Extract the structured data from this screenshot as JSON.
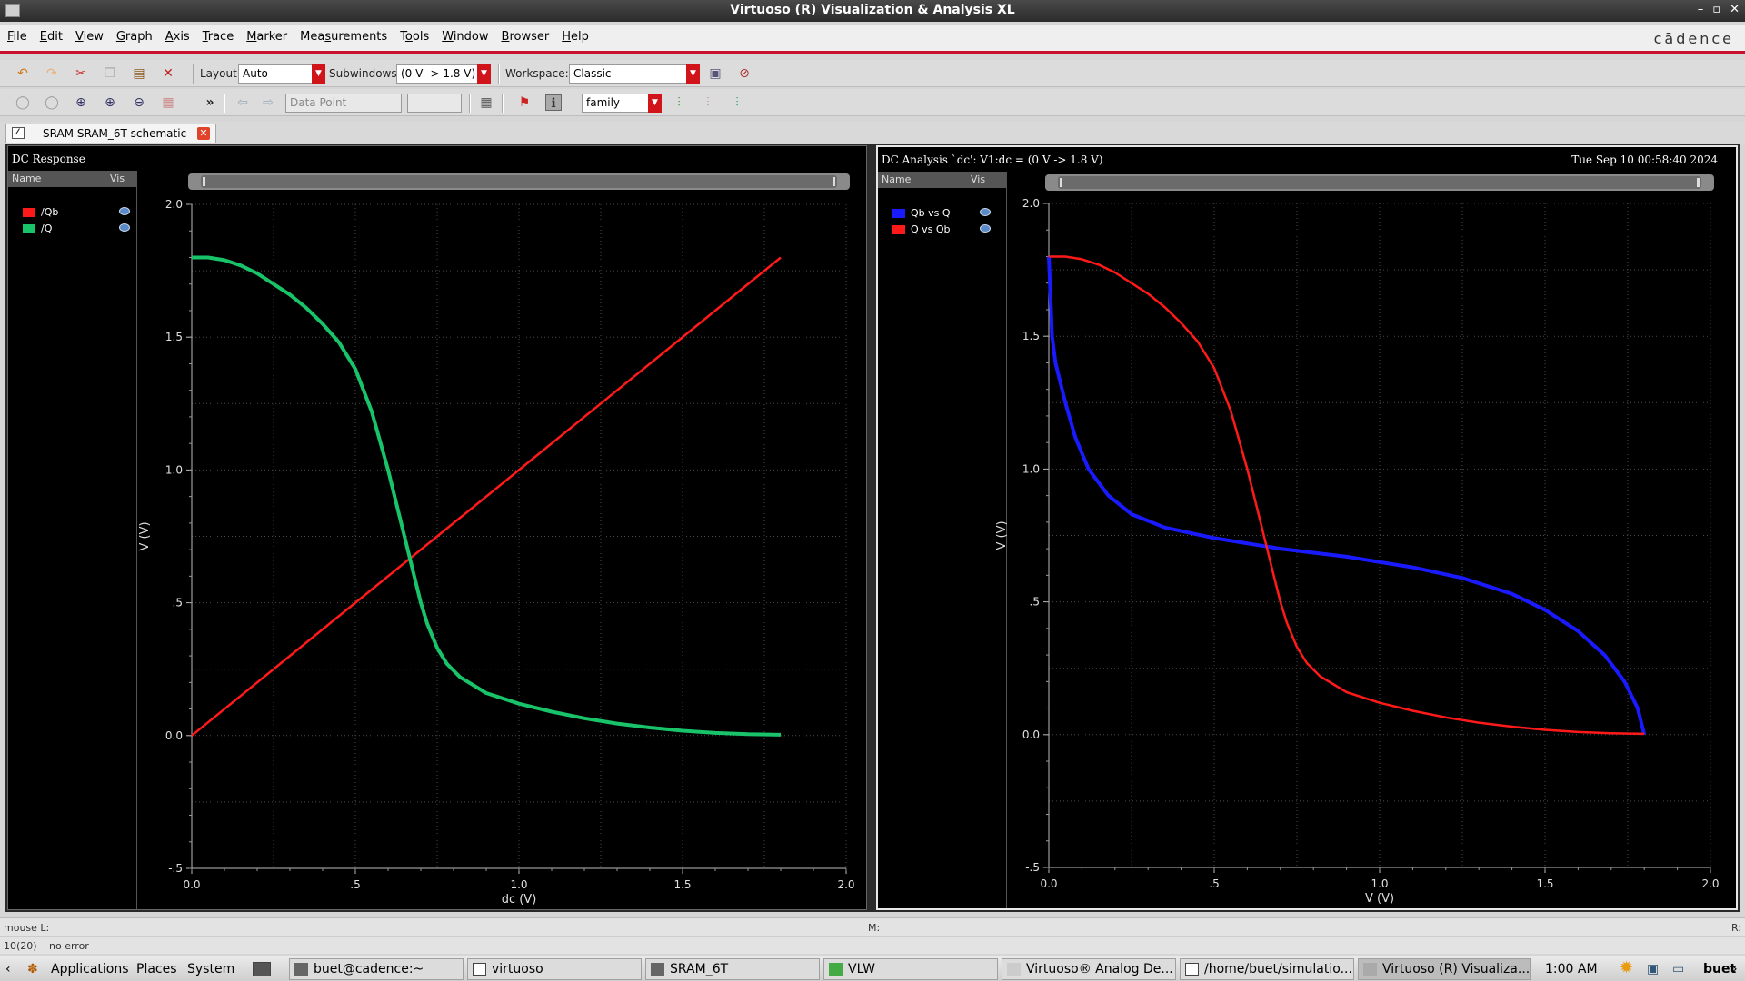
{
  "window": {
    "title": "Virtuoso (R) Visualization & Analysis XL",
    "controls": [
      "–",
      "▫",
      "✕"
    ]
  },
  "menubar": {
    "items": [
      {
        "pre": "",
        "u": "F",
        "post": "ile"
      },
      {
        "pre": "",
        "u": "E",
        "post": "dit"
      },
      {
        "pre": "",
        "u": "V",
        "post": "iew"
      },
      {
        "pre": "",
        "u": "G",
        "post": "raph"
      },
      {
        "pre": "",
        "u": "A",
        "post": "xis"
      },
      {
        "pre": "",
        "u": "T",
        "post": "race"
      },
      {
        "pre": "",
        "u": "M",
        "post": "arker"
      },
      {
        "pre": "Mea",
        "u": "s",
        "post": "urements"
      },
      {
        "pre": "T",
        "u": "o",
        "post": "ols"
      },
      {
        "pre": "",
        "u": "W",
        "post": "indow"
      },
      {
        "pre": "",
        "u": "B",
        "post": "rowser"
      },
      {
        "pre": "",
        "u": "H",
        "post": "elp"
      }
    ],
    "brand": "cādence"
  },
  "toolbar1": {
    "layout_label": "Layout:",
    "layout_value": "Auto",
    "subwindows_label": "Subwindows:",
    "subwindows_value": "(0 V -> 1.8 V)",
    "workspace_label": "Workspace:",
    "workspace_value": "Classic"
  },
  "toolbar2": {
    "more": "»",
    "datapoint_value": "Data Point",
    "family_value": "family"
  },
  "tab": {
    "label": "SRAM SRAM_6T schematic",
    "close": "✕"
  },
  "left": {
    "title": "DC Response",
    "legend_header": {
      "name": "Name",
      "vis": "Vis"
    },
    "legend": [
      {
        "name": "/Qb",
        "color": "#ff1a1a"
      },
      {
        "name": "/Q",
        "color": "#19c36a"
      }
    ],
    "xlabel": "dc (V)",
    "ylabel": "V (V)"
  },
  "right": {
    "title": "DC Analysis `dc': V1:dc = (0 V -> 1.8 V)",
    "date": "Tue Sep 10 00:58:40 2024",
    "legend_header": {
      "name": "Name",
      "vis": "Vis"
    },
    "legend": [
      {
        "name": "Qb vs Q",
        "color": "#1a1aff"
      },
      {
        "name": "Q vs Qb",
        "color": "#ff1a1a"
      }
    ],
    "xlabel": "V (V)",
    "ylabel": "V (V)"
  },
  "chart_data": [
    {
      "type": "line",
      "title": "DC Response",
      "xlabel": "dc (V)",
      "ylabel": "V (V)",
      "xlim": [
        0,
        2.0
      ],
      "ylim": [
        -0.5,
        2.0
      ],
      "xticks": [
        "0.0",
        ".5",
        "1.0",
        "1.5",
        "2.0"
      ],
      "yticks": [
        "-.5",
        "0.0",
        ".5",
        "1.0",
        "1.5",
        "2.0"
      ],
      "grid": true,
      "series": [
        {
          "name": "/Qb",
          "color": "#ff1a1a",
          "x": [
            0,
            1.8
          ],
          "y": [
            0,
            1.8
          ]
        },
        {
          "name": "/Q",
          "color": "#19c36a",
          "x": [
            0,
            0.05,
            0.1,
            0.15,
            0.2,
            0.3,
            0.35,
            0.4,
            0.45,
            0.5,
            0.55,
            0.6,
            0.62,
            0.65,
            0.68,
            0.7,
            0.72,
            0.75,
            0.78,
            0.82,
            0.9,
            1.0,
            1.1,
            1.2,
            1.3,
            1.4,
            1.5,
            1.6,
            1.7,
            1.8
          ],
          "y": [
            1.8,
            1.8,
            1.79,
            1.77,
            1.74,
            1.66,
            1.61,
            1.55,
            1.48,
            1.38,
            1.22,
            1.0,
            0.9,
            0.75,
            0.6,
            0.5,
            0.42,
            0.33,
            0.27,
            0.22,
            0.16,
            0.12,
            0.09,
            0.065,
            0.045,
            0.03,
            0.018,
            0.01,
            0.005,
            0.003
          ]
        }
      ]
    },
    {
      "type": "line",
      "title": "DC Analysis `dc': V1:dc = (0 V -> 1.8 V)",
      "xlabel": "V (V)",
      "ylabel": "V (V)",
      "xlim": [
        0,
        2.0
      ],
      "ylim": [
        -0.5,
        2.0
      ],
      "xticks": [
        "0.0",
        ".5",
        "1.0",
        "1.5",
        "2.0"
      ],
      "yticks": [
        "-.5",
        "0.0",
        ".5",
        "1.0",
        "1.5",
        "2.0"
      ],
      "grid": true,
      "series": [
        {
          "name": "Qb vs Q",
          "color": "#1a1aff",
          "x": [
            0.0,
            0.005,
            0.01,
            0.02,
            0.05,
            0.08,
            0.12,
            0.18,
            0.25,
            0.35,
            0.5,
            0.7,
            0.9,
            1.1,
            1.25,
            1.4,
            1.5,
            1.6,
            1.68,
            1.74,
            1.78,
            1.8
          ],
          "y": [
            1.8,
            1.65,
            1.5,
            1.4,
            1.25,
            1.12,
            1.0,
            0.9,
            0.83,
            0.78,
            0.74,
            0.7,
            0.67,
            0.63,
            0.59,
            0.53,
            0.47,
            0.39,
            0.3,
            0.2,
            0.1,
            0.0
          ]
        },
        {
          "name": "Q vs Qb",
          "color": "#ff1a1a",
          "x": [
            0,
            0.05,
            0.1,
            0.15,
            0.2,
            0.3,
            0.35,
            0.4,
            0.45,
            0.5,
            0.55,
            0.6,
            0.62,
            0.65,
            0.68,
            0.7,
            0.72,
            0.75,
            0.78,
            0.82,
            0.9,
            1.0,
            1.1,
            1.2,
            1.3,
            1.4,
            1.5,
            1.6,
            1.7,
            1.8
          ],
          "y": [
            1.8,
            1.8,
            1.79,
            1.77,
            1.74,
            1.66,
            1.61,
            1.55,
            1.48,
            1.38,
            1.22,
            1.0,
            0.9,
            0.75,
            0.6,
            0.5,
            0.42,
            0.33,
            0.27,
            0.22,
            0.16,
            0.12,
            0.09,
            0.065,
            0.045,
            0.03,
            0.018,
            0.01,
            0.005,
            0.003
          ]
        }
      ]
    }
  ],
  "status": {
    "mouse_l": "mouse L:",
    "m": "M:",
    "r": "R:",
    "count": "10(20)",
    "message": "no error"
  },
  "taskbar": {
    "applications": "Applications",
    "places": "Places",
    "system": "System",
    "tasks": [
      "buet@cadence:~",
      "virtuoso",
      "SRAM_6T",
      "VLW",
      "Virtuoso® Analog De...",
      "/home/buet/simulatio...",
      "Virtuoso (R) Visualiza..."
    ],
    "clock": "1:00 AM",
    "user": "buet"
  }
}
